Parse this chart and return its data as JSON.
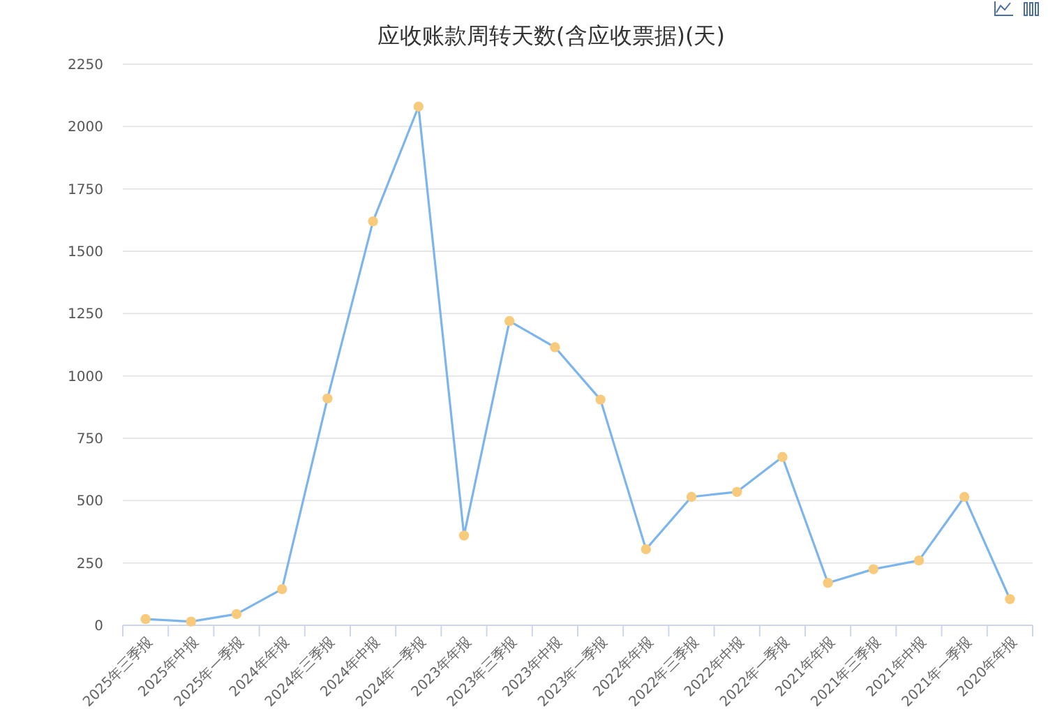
{
  "chart_data": {
    "type": "line",
    "title": "应收账款周转天数(含应收票据)(天)",
    "categories": [
      "2025年三季报",
      "2025年中报",
      "2025年一季报",
      "2024年年报",
      "2024年三季报",
      "2024年中报",
      "2024年一季报",
      "2023年年报",
      "2023年三季报",
      "2023年中报",
      "2023年一季报",
      "2022年年报",
      "2022年三季报",
      "2022年中报",
      "2022年一季报",
      "2021年年报",
      "2021年三季报",
      "2021年中报",
      "2021年一季报",
      "2020年年报"
    ],
    "series": [
      {
        "color": "#7cb5ec",
        "values": [
          25,
          15,
          45,
          145,
          910,
          1620,
          2080,
          360,
          1220,
          1115,
          905,
          305,
          515,
          535,
          675,
          170,
          225,
          260,
          515,
          105
        ]
      }
    ],
    "ylim": [
      0,
      2250
    ],
    "yticks": [
      0,
      250,
      500,
      750,
      1000,
      1250,
      1500,
      1750,
      2000,
      2250
    ],
    "grid": "y",
    "marker": "circle",
    "line_style": "solid"
  }
}
